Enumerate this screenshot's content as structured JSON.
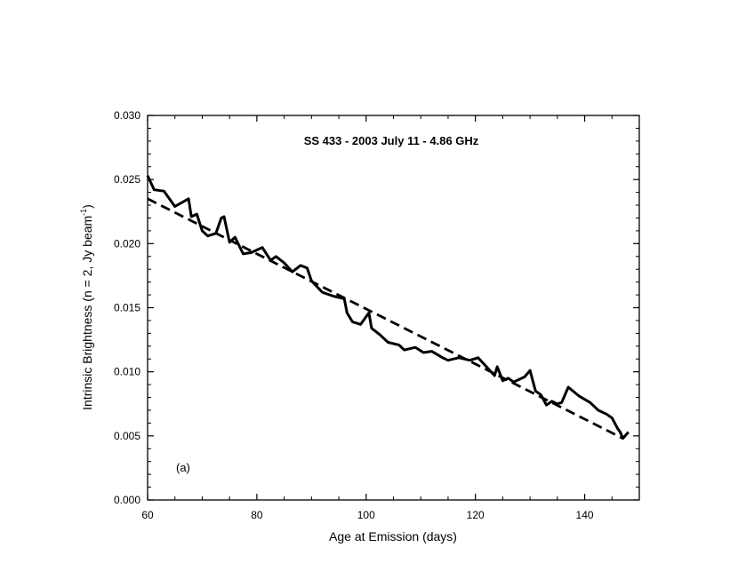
{
  "chart_data": {
    "type": "line",
    "title": "SS 433  -  2003 July 11  -  4.86 GHz",
    "xlabel": "Age at Emission (days)",
    "ylabel_main": "Intrinsic Brightness (n = 2, Jy beam",
    "ylabel_sup": "-1",
    "ylabel_end": ")",
    "annotation": "(a)",
    "xlim": [
      60,
      150
    ],
    "ylim": [
      0.0,
      0.03
    ],
    "x_ticks": [
      60,
      80,
      100,
      120,
      140
    ],
    "x_tick_labels": [
      "60",
      "80",
      "100",
      "120",
      "140"
    ],
    "y_ticks": [
      0.0,
      0.005,
      0.01,
      0.015,
      0.02,
      0.025,
      0.03
    ],
    "y_tick_labels": [
      "0.000",
      "0.005",
      "0.010",
      "0.015",
      "0.020",
      "0.025",
      "0.030"
    ],
    "series": [
      {
        "style": "solid",
        "x": [
          60.0,
          61.2,
          63.0,
          65.0,
          67.5,
          68.0,
          69.0,
          70.0,
          71.0,
          72.5,
          73.5,
          74.0,
          75.0,
          76.0,
          77.5,
          79.0,
          81.0,
          82.5,
          83.5,
          85.0,
          86.5,
          88.0,
          89.2,
          90.0,
          92.0,
          94.0,
          96.0,
          96.5,
          97.5,
          99.0,
          100.5,
          101.0,
          102.5,
          104.0,
          106.0,
          107.0,
          109.0,
          110.5,
          112.0,
          114.0,
          115.0,
          117.0,
          119.0,
          120.5,
          122.0,
          123.5,
          124.0,
          125.0,
          126.0,
          127.0,
          129.0,
          130.0,
          131.0,
          132.0,
          133.0,
          134.0,
          135.0,
          135.8,
          137.0,
          139.0,
          141.0,
          142.5,
          144.0,
          145.0,
          146.0,
          146.5,
          147.0,
          148.0
        ],
        "y": [
          0.0253,
          0.0242,
          0.0241,
          0.0229,
          0.0235,
          0.0221,
          0.0223,
          0.021,
          0.0206,
          0.0208,
          0.022,
          0.0221,
          0.0201,
          0.0205,
          0.0192,
          0.0193,
          0.0197,
          0.0187,
          0.019,
          0.0185,
          0.0178,
          0.0183,
          0.0181,
          0.0171,
          0.0162,
          0.0159,
          0.0157,
          0.0146,
          0.0139,
          0.0137,
          0.0146,
          0.0134,
          0.0129,
          0.0123,
          0.0121,
          0.0117,
          0.0119,
          0.0115,
          0.0116,
          0.0111,
          0.0109,
          0.0111,
          0.0109,
          0.0111,
          0.0104,
          0.0097,
          0.0104,
          0.0093,
          0.0095,
          0.0092,
          0.0096,
          0.0101,
          0.0085,
          0.0082,
          0.0074,
          0.0077,
          0.0075,
          0.0076,
          0.0088,
          0.0081,
          0.0076,
          0.007,
          0.0067,
          0.0064,
          0.0056,
          0.0053,
          0.0048,
          0.0053
        ]
      },
      {
        "style": "dashed",
        "x": [
          60,
          147
        ],
        "y": [
          0.0235,
          0.0048
        ]
      }
    ],
    "grid": false,
    "legend": "none"
  }
}
